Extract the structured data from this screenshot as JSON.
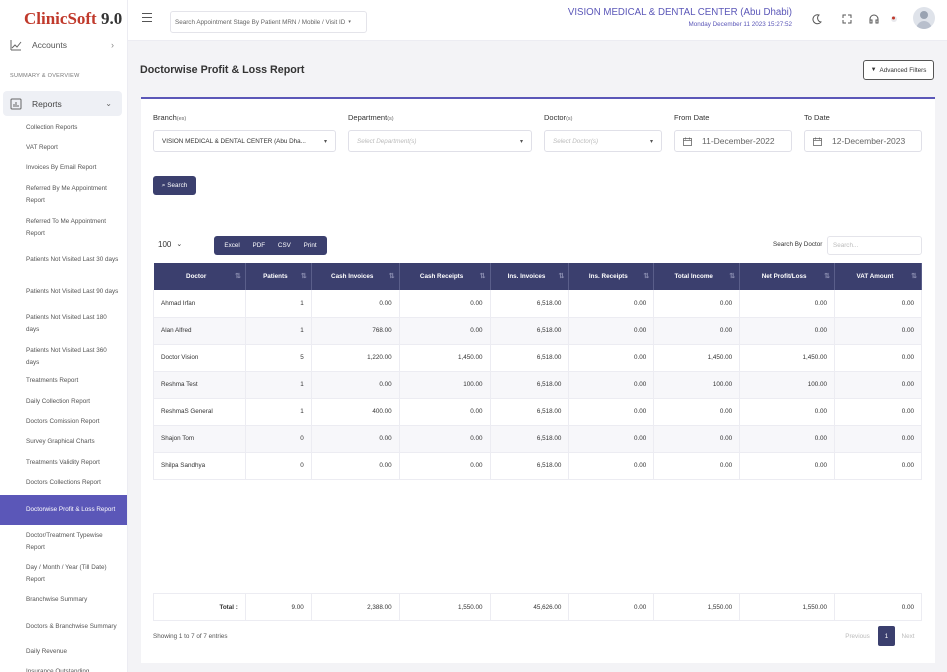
{
  "app": {
    "logo_name": "ClinicSoft",
    "logo_version": "9.0"
  },
  "topbar": {
    "search_placeholder": "Search Appointment Stage By Patient MRN / Mobile / Visit ID",
    "clinic_name": "VISION MEDICAL & DENTAL CENTER (Abu Dhabi)",
    "datetime": "Monday December 11 2023 15:27:52"
  },
  "sidebar": {
    "accounts_label": "Accounts",
    "section_label": "SUMMARY & OVERVIEW",
    "reports_label": "Reports",
    "items": [
      "Collection Reports",
      "VAT Report",
      "Invoices By Email Report",
      "Referred By Me Appointment Report",
      "Referred To Me Appointment Report",
      "Patients Not Visited Last 30 days",
      "Patients Not Visited Last 90 days",
      "Patients Not Visited Last 180 days",
      "Patients Not Visited Last 360 days",
      "Treatments Report",
      "Daily Collection Report",
      "Doctors Comission Report",
      "Survey Graphical Charts",
      "Treatments Validity Report",
      "Doctors Collections Report",
      "Doctorwise Profit & Loss Report",
      "Doctor/Treatment Typewise Report",
      "Day / Month / Year (Till Date) Report",
      "Branchwise Summary",
      "Doctors & Branchwise Summary",
      "Daily Revenue",
      "Insurance Outstanding"
    ],
    "active_item": "Doctorwise Profit & Loss Report"
  },
  "page": {
    "title": "Doctorwise Profit & Loss Report",
    "advanced_filters": "Advanced Filters"
  },
  "filters": {
    "branch_label": "Branch",
    "branch_suffix": "(es)",
    "branch_value": "VISION MEDICAL & DENTAL CENTER (Abu Dha...",
    "department_label": "Department",
    "department_suffix": "(s)",
    "department_placeholder": "Select Department(s)",
    "doctor_label": "Doctor",
    "doctor_suffix": "(s)",
    "doctor_placeholder": "Select Doctor(s)",
    "from_date_label": "From Date",
    "from_date": "11-December-2022",
    "to_date_label": "To Date",
    "to_date": "12-December-2023",
    "search_button": "Search"
  },
  "toolbar": {
    "page_size": "100",
    "export": [
      "Excel",
      "PDF",
      "CSV",
      "Print"
    ],
    "search_label": "Search By Doctor",
    "search_placeholder": "Search..."
  },
  "table": {
    "columns": [
      "Doctor",
      "Patients",
      "Cash Invoices",
      "Cash Receipts",
      "Ins. Invoices",
      "Ins. Receipts",
      "Total Income",
      "Net Profit/Loss",
      "VAT Amount"
    ],
    "rows": [
      [
        "Ahmad Irfan",
        "1",
        "0.00",
        "0.00",
        "6,518.00",
        "0.00",
        "0.00",
        "0.00",
        "0.00"
      ],
      [
        "Alan Alfred",
        "1",
        "768.00",
        "0.00",
        "6,518.00",
        "0.00",
        "0.00",
        "0.00",
        "0.00"
      ],
      [
        "Doctor Vision",
        "5",
        "1,220.00",
        "1,450.00",
        "6,518.00",
        "0.00",
        "1,450.00",
        "1,450.00",
        "0.00"
      ],
      [
        "Reshma Test",
        "1",
        "0.00",
        "100.00",
        "6,518.00",
        "0.00",
        "100.00",
        "100.00",
        "0.00"
      ],
      [
        "ReshmaS General",
        "1",
        "400.00",
        "0.00",
        "6,518.00",
        "0.00",
        "0.00",
        "0.00",
        "0.00"
      ],
      [
        "Shajon Tom",
        "0",
        "0.00",
        "0.00",
        "6,518.00",
        "0.00",
        "0.00",
        "0.00",
        "0.00"
      ],
      [
        "Shilpa Sandhya",
        "0",
        "0.00",
        "0.00",
        "6,518.00",
        "0.00",
        "0.00",
        "0.00",
        "0.00"
      ]
    ],
    "totals": [
      "Total :",
      "9.00",
      "2,388.00",
      "1,550.00",
      "45,626.00",
      "0.00",
      "1,550.00",
      "1,550.00",
      "0.00"
    ]
  },
  "footer": {
    "showing": "Showing 1 to 7 of 7 entries",
    "previous": "Previous",
    "current_page": "1",
    "next": "Next"
  },
  "colors": {
    "accent": "#5b57b8",
    "header": "#3b3f6e",
    "logo": "#c0392b"
  }
}
